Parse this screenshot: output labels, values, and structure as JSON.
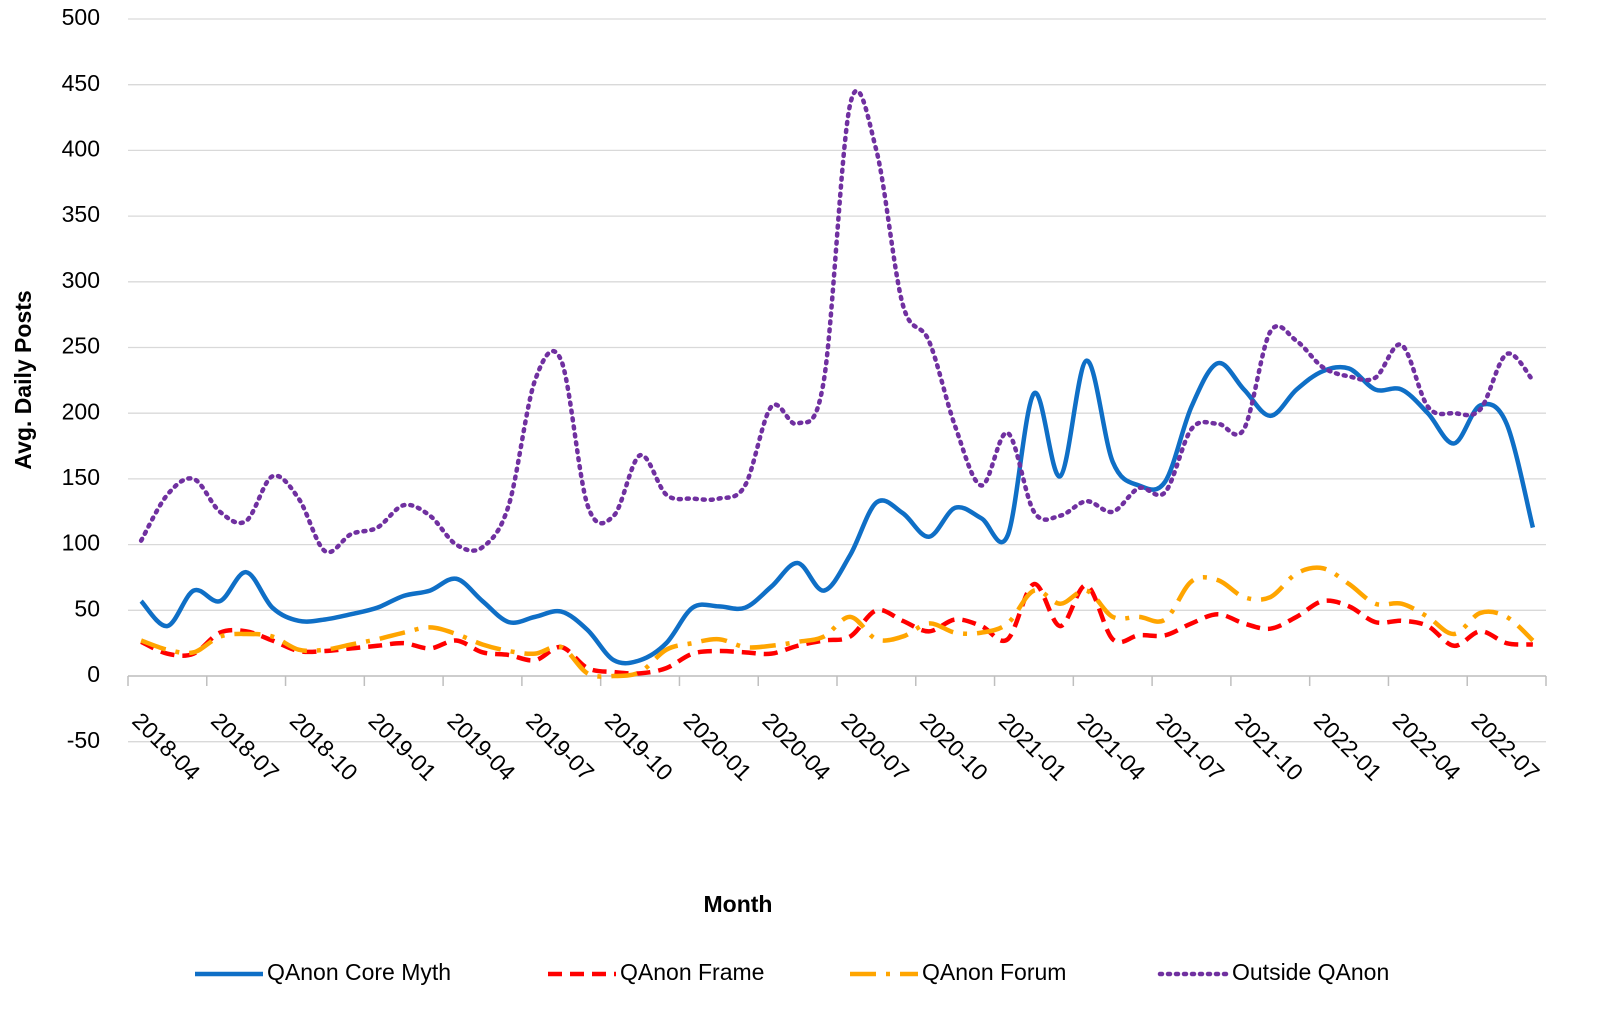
{
  "chart_data": {
    "type": "line",
    "x_label": "Month",
    "y_label": "Avg. Daily Posts",
    "categories": [
      "2018-04",
      null,
      null,
      "2018-07",
      null,
      null,
      "2018-10",
      null,
      null,
      "2019-01",
      null,
      null,
      "2019-04",
      null,
      null,
      "2019-07",
      null,
      null,
      "2019-10",
      null,
      null,
      "2020-01",
      null,
      null,
      "2020-04",
      null,
      null,
      "2020-07",
      null,
      null,
      "2020-10",
      null,
      null,
      "2021-01",
      null,
      null,
      "2021-04",
      null,
      null,
      "2021-07",
      null,
      null,
      "2021-10",
      null,
      null,
      "2022-01",
      null,
      null,
      "2022-04",
      null,
      null,
      "2022-07",
      null,
      null
    ],
    "series": [
      {
        "name": "QAnon Core Myth",
        "color": "#0f6fc6",
        "dash": "solid",
        "values": [
          57,
          38,
          65,
          57,
          79,
          52,
          42,
          43,
          47,
          52,
          61,
          65,
          74,
          57,
          41,
          45,
          49,
          35,
          12,
          12,
          25,
          52,
          53,
          52,
          68,
          86,
          65,
          92,
          132,
          124,
          106,
          128,
          120,
          107,
          215,
          152,
          240,
          163,
          145,
          148,
          205,
          238,
          218,
          198,
          218,
          232,
          234,
          218,
          218,
          200,
          177,
          206,
          192,
          113
        ]
      },
      {
        "name": "QAnon Frame",
        "color": "#ff0000",
        "dash": "dash",
        "values": [
          26,
          17,
          17,
          33,
          34,
          27,
          19,
          19,
          21,
          23,
          25,
          21,
          27,
          18,
          16,
          12,
          22,
          6,
          3,
          2,
          6,
          17,
          19,
          18,
          17,
          23,
          27,
          30,
          50,
          42,
          34,
          43,
          38,
          28,
          70,
          38,
          69,
          28,
          31,
          31,
          40,
          47,
          40,
          36,
          45,
          57,
          53,
          41,
          42,
          38,
          23,
          34,
          25,
          24
        ]
      },
      {
        "name": "QAnon Forum",
        "color": "#ffa500",
        "dash": "dashdot",
        "values": [
          27,
          20,
          18,
          30,
          32,
          30,
          20,
          20,
          24,
          28,
          33,
          37,
          32,
          24,
          19,
          17,
          22,
          2,
          0,
          3,
          20,
          25,
          28,
          22,
          23,
          26,
          30,
          45,
          28,
          30,
          40,
          33,
          33,
          40,
          65,
          55,
          65,
          45,
          45,
          43,
          72,
          73,
          60,
          60,
          78,
          82,
          70,
          55,
          55,
          45,
          32,
          48,
          45,
          27
        ]
      },
      {
        "name": "Outside QAnon",
        "color": "#7030a0",
        "dash": "dot",
        "values": [
          103,
          138,
          150,
          125,
          118,
          152,
          135,
          95,
          108,
          113,
          130,
          122,
          100,
          98,
          130,
          225,
          240,
          130,
          122,
          168,
          138,
          135,
          135,
          145,
          205,
          192,
          225,
          435,
          400,
          283,
          255,
          190,
          145,
          185,
          125,
          122,
          133,
          125,
          143,
          140,
          188,
          192,
          188,
          262,
          255,
          235,
          228,
          227,
          252,
          205,
          200,
          203,
          245,
          225
        ]
      }
    ],
    "ylim": [
      -50,
      500
    ],
    "yticks": [
      -50,
      0,
      50,
      100,
      150,
      200,
      250,
      300,
      350,
      400,
      450,
      500
    ],
    "grid": true,
    "legend": "bottom"
  }
}
